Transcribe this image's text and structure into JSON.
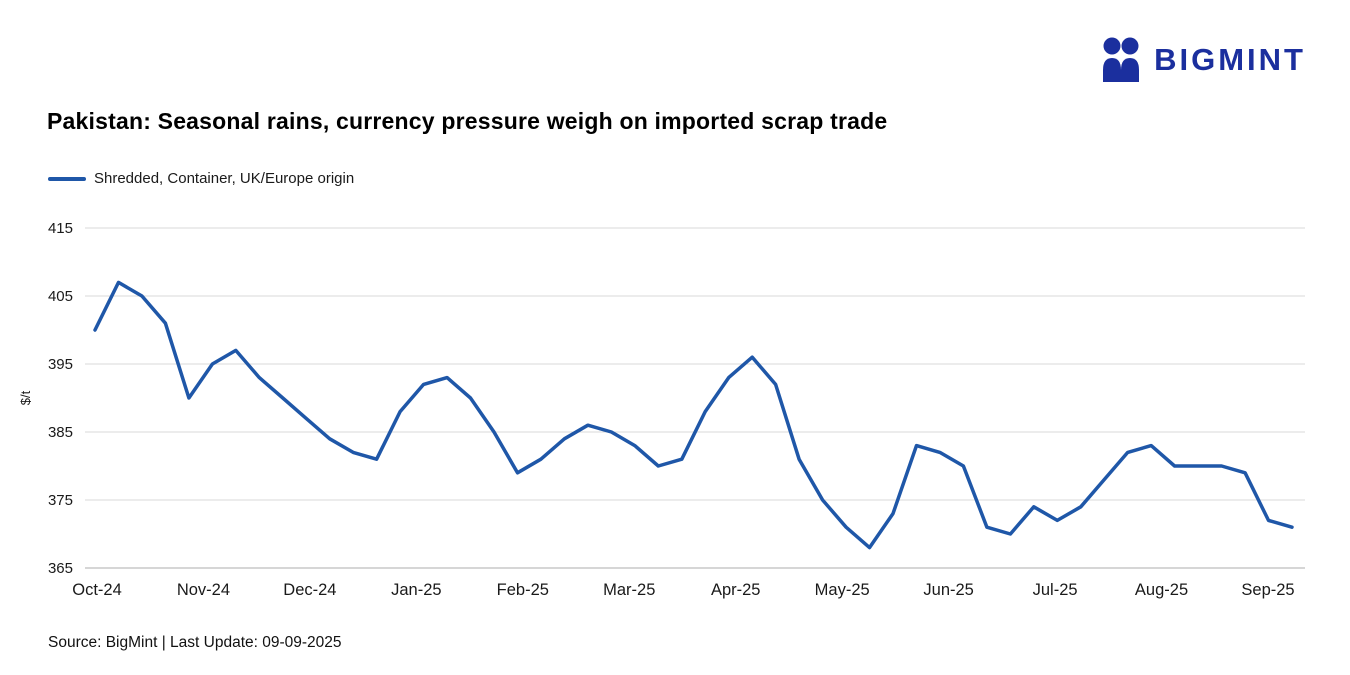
{
  "logo": {
    "text": "BIGMINT",
    "icon": "bigmint-people-icon",
    "brand_color": "#1b2f9e"
  },
  "header": {
    "title": "Pakistan: Seasonal rains, currency pressure weigh on imported scrap trade"
  },
  "legend": {
    "label": "Shredded, Container, UK/Europe origin",
    "color": "#1f57a8"
  },
  "footer": {
    "source": "Source: BigMint | Last Update: 09-09-2025"
  },
  "chart_data": {
    "type": "line",
    "title": "Pakistan: Seasonal rains, currency pressure weigh on imported scrap trade",
    "xlabel": "",
    "ylabel": "$/t",
    "ylim": [
      365,
      415
    ],
    "yticks": [
      365,
      375,
      385,
      395,
      405,
      415
    ],
    "grid": "horizontal",
    "legend_position": "top-left",
    "x_tick_labels": [
      "Oct-24",
      "Nov-24",
      "Dec-24",
      "Jan-25",
      "Feb-25",
      "Mar-25",
      "Apr-25",
      "May-25",
      "Jun-25",
      "Jul-25",
      "Aug-25",
      "Sep-25"
    ],
    "x_frequency": "weekly",
    "series": [
      {
        "name": "Shredded, Container, UK/Europe origin",
        "color": "#1f57a8",
        "values": [
          400,
          407,
          405,
          401,
          390,
          395,
          397,
          393,
          390,
          387,
          384,
          382,
          381,
          388,
          392,
          393,
          390,
          385,
          379,
          381,
          384,
          386,
          385,
          383,
          380,
          381,
          388,
          393,
          396,
          392,
          381,
          375,
          371,
          368,
          373,
          383,
          382,
          380,
          371,
          370,
          374,
          372,
          374,
          378,
          382,
          383,
          380,
          380,
          380,
          379,
          372,
          371
        ]
      }
    ]
  }
}
